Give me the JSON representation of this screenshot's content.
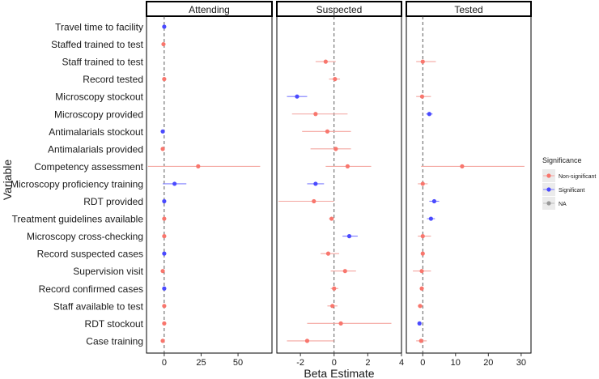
{
  "chart_data": {
    "type": "forest",
    "ylabel": "Variable",
    "xlabel": "Beta Estimate",
    "grid": false,
    "legend_position": "right",
    "reference_line": 0,
    "variables": [
      "Travel time to facility",
      "Staffed trained to test",
      "Staff trained to test",
      "Record tested",
      "Microscopy stockout",
      "Microscopy provided",
      "Antimalarials stockout",
      "Antimalarials provided",
      "Competency assessment",
      "Microscopy proficiency training",
      "RDT provided",
      "Treatment guidelines available",
      "Microscopy cross-checking",
      "Record suspected cases",
      "Supervision visit",
      "Record confirmed cases",
      "Staff available to test",
      "RDT stockout",
      "Case training"
    ],
    "legend": {
      "title": "Significance",
      "items": [
        {
          "label": "Non-significant",
          "color": "#f8766d"
        },
        {
          "label": "Significant",
          "color": "#4a4aff"
        },
        {
          "label": "NA",
          "color": "#999999"
        }
      ]
    },
    "panels": [
      {
        "name": "Attending",
        "xlim": [
          -12,
          73
        ],
        "xticks": [
          0,
          25,
          50
        ],
        "points": [
          {
            "variable": "Travel time to facility",
            "estimate": 0,
            "lower": -0.5,
            "upper": 0.5,
            "significance": "Significant"
          },
          {
            "variable": "Staffed trained to test",
            "estimate": -0.5,
            "lower": -1,
            "upper": 0,
            "significance": "Non-significant"
          },
          {
            "variable": "Record tested",
            "estimate": 0,
            "lower": -0.5,
            "upper": 0.5,
            "significance": "Non-significant"
          },
          {
            "variable": "Antimalarials stockout",
            "estimate": -1,
            "lower": -1.5,
            "upper": -0.5,
            "significance": "Significant"
          },
          {
            "variable": "Antimalarials provided",
            "estimate": -1,
            "lower": -1.5,
            "upper": -0.5,
            "significance": "Non-significant"
          },
          {
            "variable": "Competency assessment",
            "estimate": 23,
            "lower": -11,
            "upper": 65,
            "significance": "Non-significant"
          },
          {
            "variable": "Microscopy proficiency training",
            "estimate": 7,
            "lower": -1,
            "upper": 15,
            "significance": "Significant"
          },
          {
            "variable": "RDT provided",
            "estimate": 0,
            "lower": -0.5,
            "upper": 0.5,
            "significance": "Significant"
          },
          {
            "variable": "Treatment guidelines available",
            "estimate": 0,
            "lower": -0.5,
            "upper": 0.5,
            "significance": "Non-significant"
          },
          {
            "variable": "Microscopy cross-checking",
            "estimate": 0,
            "lower": -0.5,
            "upper": 0.5,
            "significance": "Non-significant"
          },
          {
            "variable": "Record suspected cases",
            "estimate": 0,
            "lower": -0.5,
            "upper": 0.5,
            "significance": "Significant"
          },
          {
            "variable": "Supervision visit",
            "estimate": -1,
            "lower": -1.5,
            "upper": -0.5,
            "significance": "Non-significant"
          },
          {
            "variable": "Record confirmed cases",
            "estimate": 0,
            "lower": -0.5,
            "upper": 0.5,
            "significance": "Significant"
          },
          {
            "variable": "Staff available to test",
            "estimate": 0,
            "lower": -0.5,
            "upper": 0.5,
            "significance": "Non-significant"
          },
          {
            "variable": "RDT stockout",
            "estimate": 0,
            "lower": -0.5,
            "upper": 0.5,
            "significance": "Non-significant"
          },
          {
            "variable": "Case training",
            "estimate": -1,
            "lower": -1.5,
            "upper": -0.5,
            "significance": "Non-significant"
          }
        ]
      },
      {
        "name": "Suspected",
        "xlim": [
          -3.4,
          4.0
        ],
        "xticks": [
          -2,
          0,
          2,
          4
        ],
        "points": [
          {
            "variable": "Staff trained to test",
            "estimate": -0.5,
            "lower": -1.1,
            "upper": 0.1,
            "significance": "Non-significant"
          },
          {
            "variable": "Record tested",
            "estimate": 0.05,
            "lower": -0.3,
            "upper": 0.35,
            "significance": "Non-significant"
          },
          {
            "variable": "Microscopy stockout",
            "estimate": -2.2,
            "lower": -2.8,
            "upper": -1.6,
            "significance": "Significant"
          },
          {
            "variable": "Microscopy provided",
            "estimate": -1.1,
            "lower": -2.5,
            "upper": 0.8,
            "significance": "Non-significant"
          },
          {
            "variable": "Antimalarials stockout",
            "estimate": -0.4,
            "lower": -1.9,
            "upper": 1.0,
            "significance": "Non-significant"
          },
          {
            "variable": "Antimalarials provided",
            "estimate": 0.1,
            "lower": -1.4,
            "upper": 1.0,
            "significance": "Non-significant"
          },
          {
            "variable": "Competency assessment",
            "estimate": 0.8,
            "lower": -0.5,
            "upper": 2.2,
            "significance": "Non-significant"
          },
          {
            "variable": "Microscopy proficiency training",
            "estimate": -1.1,
            "lower": -1.6,
            "upper": -0.6,
            "significance": "Significant"
          },
          {
            "variable": "RDT provided",
            "estimate": -1.2,
            "lower": -3.3,
            "upper": 0,
            "significance": "Non-significant"
          },
          {
            "variable": "Treatment guidelines available",
            "estimate": -0.15,
            "lower": -0.3,
            "upper": 0,
            "significance": "Non-significant"
          },
          {
            "variable": "Microscopy cross-checking",
            "estimate": 0.9,
            "lower": 0.5,
            "upper": 1.4,
            "significance": "Significant"
          },
          {
            "variable": "Record suspected cases",
            "estimate": -0.35,
            "lower": -0.8,
            "upper": 0.3,
            "significance": "Non-significant"
          },
          {
            "variable": "Supervision visit",
            "estimate": 0.65,
            "lower": -0.2,
            "upper": 1.3,
            "significance": "Non-significant"
          },
          {
            "variable": "Record confirmed cases",
            "estimate": 0,
            "lower": -0.2,
            "upper": 0.25,
            "significance": "Non-significant"
          },
          {
            "variable": "Staff available to test",
            "estimate": -0.1,
            "lower": -0.4,
            "upper": 0.2,
            "significance": "Non-significant"
          },
          {
            "variable": "RDT stockout",
            "estimate": 0.4,
            "lower": -1.6,
            "upper": 3.4,
            "significance": "Non-significant"
          },
          {
            "variable": "Case training",
            "estimate": -1.6,
            "lower": -2.8,
            "upper": 0,
            "significance": "Non-significant"
          }
        ]
      },
      {
        "name": "Tested",
        "xlim": [
          -5,
          33
        ],
        "xticks": [
          0,
          10,
          20,
          30
        ],
        "points": [
          {
            "variable": "Staff trained to test",
            "estimate": 0,
            "lower": -2,
            "upper": 4,
            "significance": "Non-significant"
          },
          {
            "variable": "Microscopy stockout",
            "estimate": -0.2,
            "lower": -2,
            "upper": 2.5,
            "significance": "Non-significant"
          },
          {
            "variable": "Microscopy provided",
            "estimate": 2,
            "lower": 1,
            "upper": 3,
            "significance": "Significant"
          },
          {
            "variable": "Competency assessment",
            "estimate": 12,
            "lower": -0.5,
            "upper": 31,
            "significance": "Non-significant"
          },
          {
            "variable": "Microscopy proficiency training",
            "estimate": 0,
            "lower": -1.5,
            "upper": 1.5,
            "significance": "Non-significant"
          },
          {
            "variable": "RDT provided",
            "estimate": 3.5,
            "lower": 2,
            "upper": 5,
            "significance": "Significant"
          },
          {
            "variable": "Treatment guidelines available",
            "estimate": 2.5,
            "lower": 1.3,
            "upper": 3.7,
            "significance": "Significant"
          },
          {
            "variable": "Microscopy cross-checking",
            "estimate": 0,
            "lower": -1.5,
            "upper": 2.5,
            "significance": "Non-significant"
          },
          {
            "variable": "Record suspected cases",
            "estimate": 0,
            "lower": -0.5,
            "upper": 0.5,
            "significance": "Non-significant"
          },
          {
            "variable": "Supervision visit",
            "estimate": -0.3,
            "lower": -3,
            "upper": 2.5,
            "significance": "Non-significant"
          },
          {
            "variable": "Record confirmed cases",
            "estimate": -0.3,
            "lower": -0.8,
            "upper": 0.3,
            "significance": "Non-significant"
          },
          {
            "variable": "Staff available to test",
            "estimate": -0.8,
            "lower": -1.5,
            "upper": 0,
            "significance": "Non-significant"
          },
          {
            "variable": "RDT stockout",
            "estimate": -1,
            "lower": -1.5,
            "upper": -0.5,
            "significance": "Significant"
          },
          {
            "variable": "Case training",
            "estimate": -0.5,
            "lower": -2,
            "upper": 1.2,
            "significance": "Non-significant"
          }
        ]
      }
    ]
  }
}
